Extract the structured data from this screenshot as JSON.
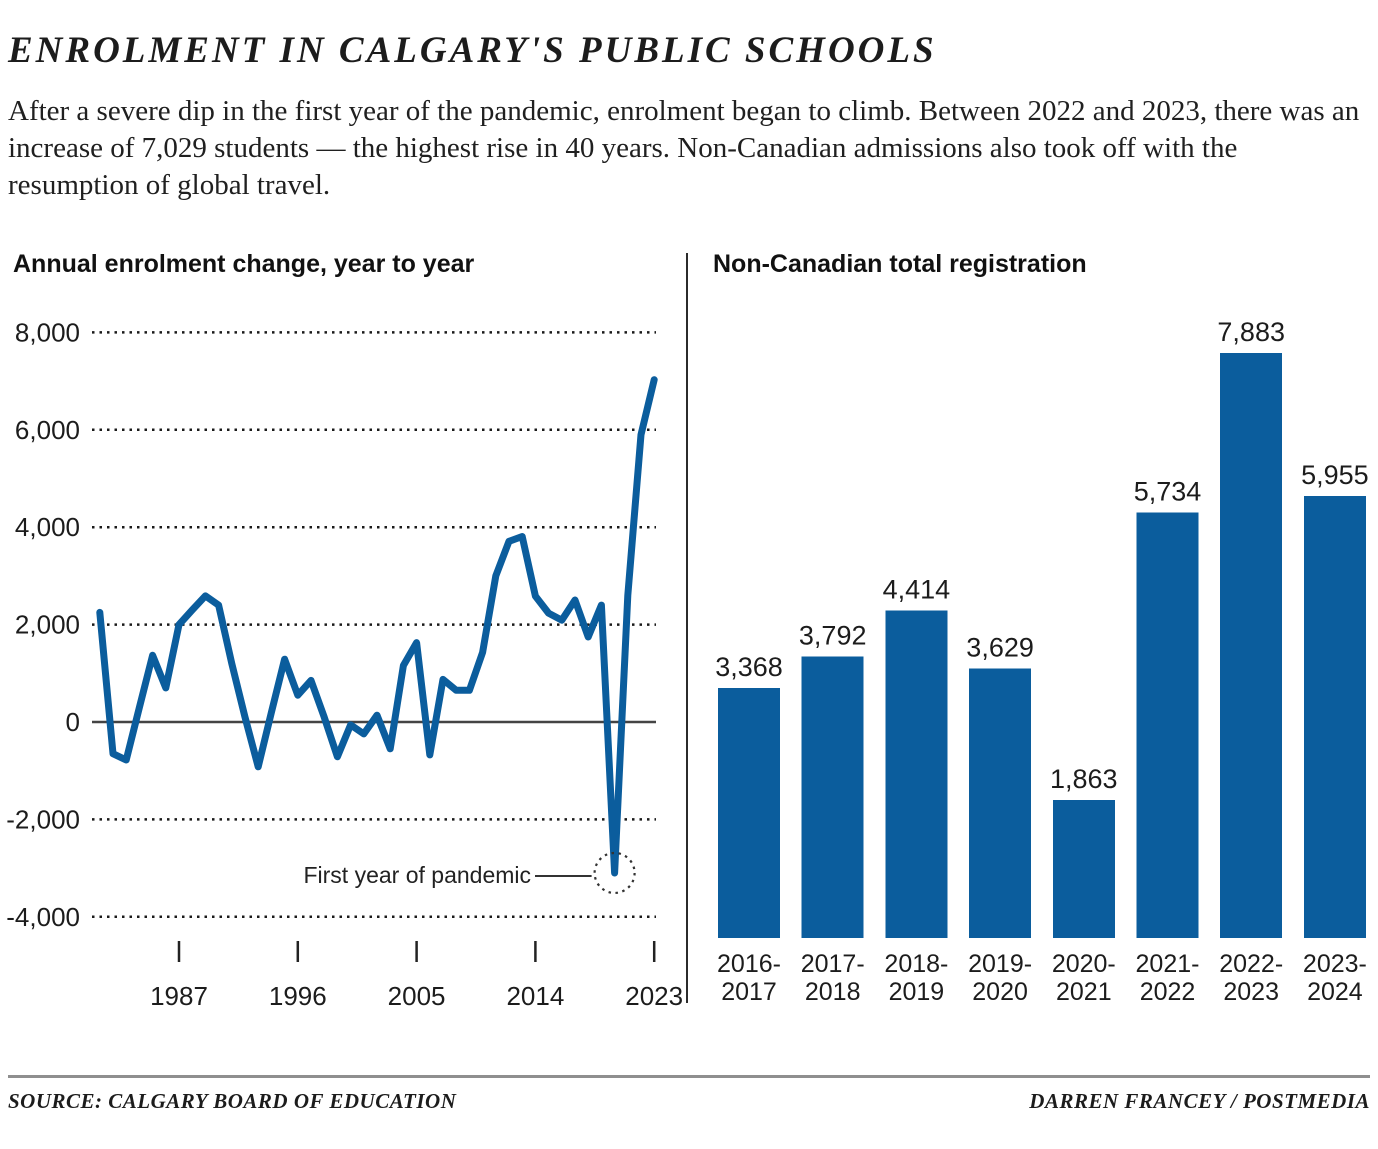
{
  "header": {
    "title": "ENROLMENT IN CALGARY'S PUBLIC SCHOOLS",
    "subtitle": "After a severe dip in the first year of the pandemic, enrolment began to climb. Between 2022 and 2023, there was an increase of 7,029 students — the highest rise in 40 years. Non-Canadian admissions also took off with the resumption of global travel."
  },
  "colors": {
    "accent_blue": "#0b5d9d",
    "grid_dark": "#1a1a1a",
    "zero_line": "#444444",
    "separator": "#2b2b2b",
    "rule_gray": "#8f8f8f"
  },
  "chart_data": [
    {
      "type": "line",
      "title": "Annual enrolment change, year to year",
      "x": [
        1981,
        1982,
        1983,
        1984,
        1985,
        1986,
        1987,
        1988,
        1989,
        1990,
        1991,
        1992,
        1993,
        1994,
        1995,
        1996,
        1997,
        1998,
        1999,
        2000,
        2001,
        2002,
        2003,
        2004,
        2005,
        2006,
        2007,
        2008,
        2009,
        2010,
        2011,
        2012,
        2013,
        2014,
        2015,
        2016,
        2017,
        2018,
        2019,
        2020,
        2021,
        2022,
        2023
      ],
      "series": [
        {
          "name": "Annual enrolment change",
          "values": [
            2250,
            -650,
            -780,
            300,
            1370,
            700,
            2000,
            2300,
            2590,
            2400,
            1200,
            100,
            -920,
            200,
            1290,
            550,
            855,
            100,
            -715,
            -60,
            -245,
            140,
            -550,
            1160,
            1630,
            -675,
            875,
            650,
            650,
            1430,
            3000,
            3710,
            3810,
            2585,
            2235,
            2090,
            2505,
            1745,
            2400,
            -3100,
            2600,
            5900,
            7029
          ]
        }
      ],
      "x_tick_labels": [
        "1987",
        "1996",
        "2005",
        "2014",
        "2023"
      ],
      "x_tick_years": [
        1987,
        1996,
        2005,
        2014,
        2023
      ],
      "y_ticks": [
        {
          "value": 8000,
          "label": "8,000"
        },
        {
          "value": 6000,
          "label": "6,000"
        },
        {
          "value": 4000,
          "label": "4,000"
        },
        {
          "value": 2000,
          "label": "2,000"
        },
        {
          "value": 0,
          "label": "0"
        },
        {
          "value": -2000,
          "label": "-2,000"
        },
        {
          "value": -4000,
          "label": "-4,000"
        }
      ],
      "ylim": [
        -4000,
        8000
      ],
      "grid": "dotted horizontal",
      "legend": "none",
      "annotation": {
        "label": "First year of pandemic",
        "year": 2020,
        "value": -3100
      }
    },
    {
      "type": "bar",
      "title": "Non-Canadian total registration",
      "categories": [
        "2016-2017",
        "2017-2018",
        "2018-2019",
        "2019-2020",
        "2020-2021",
        "2021-2022",
        "2022-2023",
        "2023-2024"
      ],
      "values": [
        3368,
        3792,
        4414,
        3629,
        1863,
        5734,
        7883,
        5955
      ],
      "value_labels": [
        "3,368",
        "3,792",
        "4,414",
        "3,629",
        "1,863",
        "5,734",
        "7,883",
        "5,955"
      ],
      "ylim": [
        0,
        8000
      ],
      "grid": "off",
      "legend": "none"
    }
  ],
  "footer": {
    "source": "SOURCE: CALGARY BOARD OF EDUCATION",
    "credit": "DARREN FRANCEY / POSTMEDIA"
  }
}
